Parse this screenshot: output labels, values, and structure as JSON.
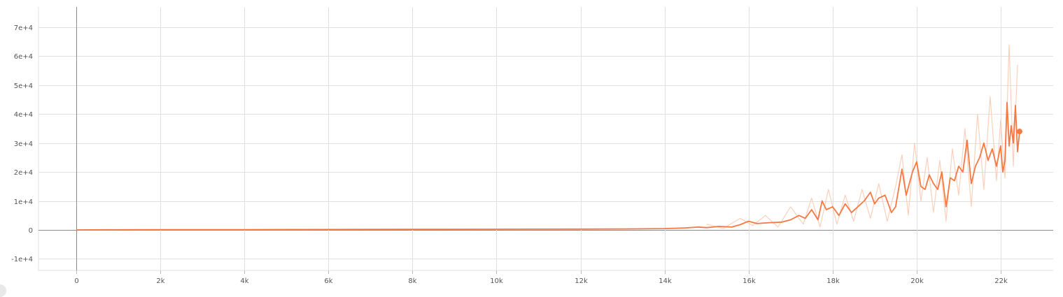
{
  "chart_data": {
    "type": "line",
    "title": "",
    "xlabel": "",
    "ylabel": "",
    "xlim": [
      -900,
      23250
    ],
    "ylim": [
      -14000,
      77000
    ],
    "x_ticks": [
      0,
      2000,
      4000,
      6000,
      8000,
      10000,
      12000,
      14000,
      16000,
      18000,
      20000,
      22000
    ],
    "x_tick_labels": [
      "0",
      "2k",
      "4k",
      "6k",
      "8k",
      "10k",
      "12k",
      "14k",
      "16k",
      "18k",
      "20k",
      "22k"
    ],
    "y_ticks": [
      -10000,
      0,
      10000,
      20000,
      30000,
      40000,
      50000,
      60000,
      70000
    ],
    "y_tick_labels": [
      "-1e+4",
      "0",
      "1e+4",
      "2e+4",
      "3e+4",
      "4e+4",
      "5e+4",
      "6e+4",
      "7e+4"
    ],
    "grid": true,
    "legend": "none",
    "colors": {
      "smoothed": "#f47943",
      "raw": "#f9cbb4",
      "grid": "#e0e0e0",
      "zero_axis": "#8c8c8c"
    },
    "series": [
      {
        "kind": "smoothed",
        "x": [
          0,
          2000,
          4000,
          6000,
          8000,
          10000,
          12000,
          13000,
          14000,
          14500,
          14800,
          15000,
          15300,
          15600,
          15800,
          16000,
          16200,
          16500,
          16800,
          17000,
          17200,
          17350,
          17500,
          17650,
          17750,
          17850,
          18000,
          18150,
          18300,
          18450,
          18600,
          18750,
          18900,
          19000,
          19100,
          19250,
          19400,
          19500,
          19650,
          19750,
          19900,
          20000,
          20100,
          20200,
          20300,
          20400,
          20500,
          20600,
          20700,
          20800,
          20900,
          21000,
          21100,
          21200,
          21300,
          21400,
          21500,
          21600,
          21700,
          21800,
          21900,
          22000,
          22050,
          22100,
          22150,
          22200,
          22250,
          22300,
          22350,
          22400,
          22450
        ],
        "y": [
          0,
          100,
          100,
          150,
          200,
          250,
          300,
          350,
          450,
          700,
          1000,
          800,
          1200,
          1000,
          1800,
          3000,
          2200,
          2500,
          2700,
          3500,
          5000,
          4000,
          7000,
          3500,
          10000,
          7000,
          8000,
          5000,
          9000,
          6000,
          8000,
          10000,
          13000,
          9000,
          11000,
          12000,
          6000,
          8000,
          21000,
          12000,
          20000,
          23500,
          15000,
          14000,
          19000,
          16000,
          14000,
          20000,
          8000,
          18000,
          17000,
          22000,
          20000,
          31000,
          16000,
          22000,
          25000,
          30000,
          24000,
          28000,
          22000,
          29000,
          20000,
          24000,
          44000,
          29000,
          36000,
          30000,
          43000,
          27000,
          34000
        ]
      },
      {
        "kind": "raw",
        "x": [
          15000,
          15400,
          15800,
          16100,
          16400,
          16700,
          17000,
          17300,
          17500,
          17700,
          17900,
          18100,
          18300,
          18500,
          18700,
          18900,
          19100,
          19300,
          19500,
          19650,
          19800,
          19950,
          20100,
          20250,
          20400,
          20550,
          20700,
          20850,
          21000,
          21150,
          21300,
          21450,
          21600,
          21750,
          21900,
          22000,
          22100,
          22200,
          22300,
          22400
        ],
        "y": [
          2000,
          500,
          4000,
          1500,
          5000,
          1000,
          8000,
          2000,
          11000,
          1000,
          14000,
          2000,
          12000,
          3000,
          14000,
          4000,
          16000,
          3000,
          15000,
          26000,
          5000,
          30000,
          10000,
          25000,
          6000,
          24000,
          3000,
          28000,
          12000,
          35000,
          8000,
          40000,
          14000,
          46000,
          17000,
          38000,
          18000,
          64000,
          22000,
          57000
        ]
      }
    ],
    "end_marker": {
      "x": 22450,
      "y": 34000
    }
  }
}
